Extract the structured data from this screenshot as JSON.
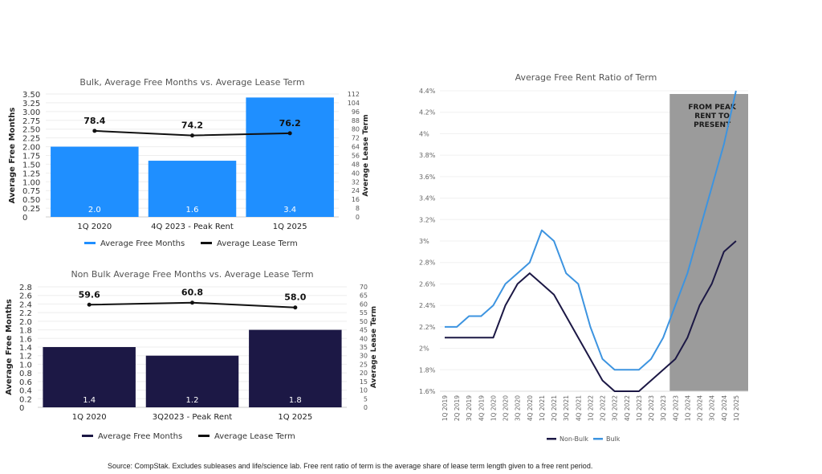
{
  "chart_data": [
    {
      "type": "bar",
      "title": "Bulk, Average Free Months vs. Average Lease Term",
      "categories": [
        "1Q 2020",
        "4Q 2023 - Peak Rent",
        "1Q 2025"
      ],
      "ylabel": "Average Free Months",
      "y2label": "Average Lease Term",
      "ylim": [
        0,
        3.5
      ],
      "yticks": [
        "0",
        "0.25",
        "0.50",
        "0.75",
        "1.00",
        "1.25",
        "1.50",
        "1.75",
        "2.00",
        "2.25",
        "2.50",
        "2.75",
        "3.00",
        "3.25",
        "3.50"
      ],
      "y2lim": [
        0,
        112
      ],
      "y2ticks": [
        "0",
        "8",
        "16",
        "24",
        "32",
        "40",
        "48",
        "56",
        "64",
        "72",
        "80",
        "88",
        "96",
        "104",
        "112"
      ],
      "grid": true,
      "legend": "bottom",
      "series": [
        {
          "name": "Average Free Months",
          "kind": "bar",
          "axis": "left",
          "color": "#1f8fff",
          "values": [
            2.0,
            1.6,
            3.4
          ],
          "labels": [
            "2.0",
            "1.6",
            "3.4"
          ]
        },
        {
          "name": "Average Lease Term",
          "kind": "line",
          "axis": "right",
          "color": "#111111",
          "values": [
            78.4,
            74.2,
            76.2
          ],
          "labels": [
            "78.4",
            "74.2",
            "76.2"
          ]
        }
      ]
    },
    {
      "type": "bar",
      "title": "Non Bulk Average Free Months vs. Average Lease Term",
      "categories": [
        "1Q 2020",
        "3Q2023 - Peak Rent",
        "1Q 2025"
      ],
      "ylabel": "Average Free Months",
      "y2label": "Average Lease Term",
      "ylim": [
        0,
        2.8
      ],
      "yticks": [
        "0",
        "0.2",
        "0.4",
        "0.6",
        "0.8",
        "1.0",
        "1.2",
        "1.4",
        "1.6",
        "1.8",
        "2.0",
        "2.2",
        "2.4",
        "2.6",
        "2.8"
      ],
      "y2lim": [
        0,
        70
      ],
      "y2ticks": [
        "0",
        "5",
        "10",
        "15",
        "20",
        "25",
        "30",
        "35",
        "40",
        "45",
        "50",
        "55",
        "60",
        "65",
        "70"
      ],
      "grid": true,
      "legend": "bottom",
      "series": [
        {
          "name": "Average Free Months",
          "kind": "bar",
          "axis": "left",
          "color": "#1c1845",
          "values": [
            1.4,
            1.2,
            1.8
          ],
          "labels": [
            "1.4",
            "1.2",
            "1.8"
          ]
        },
        {
          "name": "Average Lease Term",
          "kind": "line",
          "axis": "right",
          "color": "#111111",
          "values": [
            59.6,
            60.8,
            58.0
          ],
          "labels": [
            "59.6",
            "60.8",
            "58.0"
          ]
        }
      ]
    },
    {
      "type": "line",
      "title": "Average Free Rent Ratio of Term",
      "categories": [
        "1Q 2019",
        "2Q 2019",
        "3Q 2019",
        "4Q 2019",
        "1Q 2020",
        "2Q 2020",
        "3Q 2020",
        "4Q 2020",
        "1Q 2021",
        "2Q 2021",
        "3Q 2021",
        "4Q 2021",
        "1Q 2022",
        "2Q 2022",
        "3Q 2022",
        "4Q 2022",
        "1Q 2023",
        "2Q 2023",
        "3Q 2023",
        "4Q 2023",
        "1Q 2024",
        "2Q 2024",
        "3Q 2024",
        "4Q 2024",
        "1Q 2025"
      ],
      "ylim": [
        1.6,
        4.4
      ],
      "yticks": [
        "1.6%",
        "1.8%",
        "2%",
        "2.2%",
        "2.4%",
        "2.6%",
        "2.8%",
        "3%",
        "3.2%",
        "3.4%",
        "3.6%",
        "3.8%",
        "4%",
        "4.2%",
        "4.4%"
      ],
      "grid": true,
      "legend": "bottom",
      "shaded_region": {
        "from": "4Q 2023",
        "to": "1Q 2025",
        "label": "FROM PEAK RENT TO PRESENT",
        "color": "#9b9b9b"
      },
      "series": [
        {
          "name": "Non-Bulk",
          "color": "#1c1845",
          "values": [
            2.1,
            2.1,
            2.1,
            2.1,
            2.1,
            2.4,
            2.6,
            2.7,
            2.6,
            2.5,
            2.3,
            2.1,
            1.9,
            1.7,
            1.6,
            1.6,
            1.6,
            1.7,
            1.8,
            1.9,
            2.1,
            2.4,
            2.6,
            2.9,
            3.0
          ]
        },
        {
          "name": "Bulk",
          "color": "#3d94e0",
          "values": [
            2.2,
            2.2,
            2.3,
            2.3,
            2.4,
            2.6,
            2.7,
            2.8,
            3.1,
            3.0,
            2.7,
            2.6,
            2.2,
            1.9,
            1.8,
            1.8,
            1.8,
            1.9,
            2.1,
            2.4,
            2.7,
            3.1,
            3.5,
            3.9,
            4.4
          ]
        }
      ]
    }
  ],
  "footer": {
    "source": "Source: CompStak. Excludes subleases and life/science lab. Free rent ratio of term is the average share of lease term length given to a free rent period."
  }
}
